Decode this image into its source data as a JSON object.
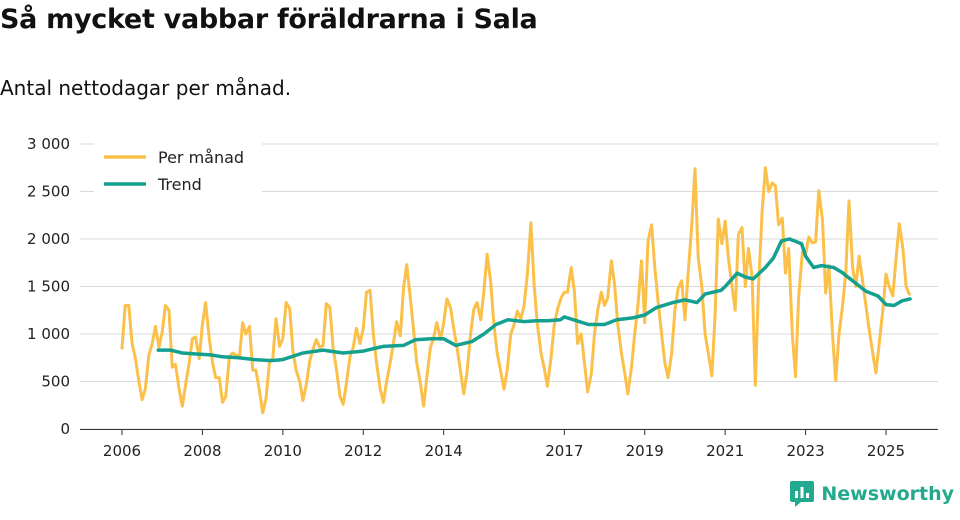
{
  "header": {
    "title": "Så mycket vabbar föräldrarna i Sala",
    "subtitle": "Antal nettodagar per månad."
  },
  "brand": {
    "name": "Newsworthy",
    "color": "#23a98e"
  },
  "chart_data": {
    "type": "line",
    "title": "Så mycket vabbar föräldrarna i Sala",
    "subtitle": "Antal nettodagar per månad.",
    "xlabel": "",
    "ylabel": "",
    "xlim": [
      2006,
      2026.3
    ],
    "ylim": [
      0,
      3000
    ],
    "yticks": [
      0,
      500,
      1000,
      1500,
      2000,
      2500,
      3000
    ],
    "ytick_labels": [
      "0",
      "500",
      "1 000",
      "1 500",
      "2 000",
      "2 500",
      "3 000"
    ],
    "xticks": [
      2006,
      2008,
      2010,
      2012,
      2014,
      2017,
      2019,
      2021,
      2023,
      2025
    ],
    "xtick_labels": [
      "2006",
      "2008",
      "2010",
      "2012",
      "2014",
      "2017",
      "2019",
      "2021",
      "2023",
      "2025"
    ],
    "grid": "horizontal",
    "legend_position": "top-left",
    "series": [
      {
        "name": "Per månad",
        "color": "#fbc04a",
        "points": [
          [
            2006.0,
            850
          ],
          [
            2006.08,
            1300
          ],
          [
            2006.17,
            1300
          ],
          [
            2006.25,
            900
          ],
          [
            2006.33,
            750
          ],
          [
            2006.42,
            500
          ],
          [
            2006.5,
            310
          ],
          [
            2006.58,
            420
          ],
          [
            2006.67,
            780
          ],
          [
            2006.75,
            900
          ],
          [
            2006.83,
            1080
          ],
          [
            2006.92,
            860
          ],
          [
            2007.0,
            1020
          ],
          [
            2007.08,
            1300
          ],
          [
            2007.17,
            1250
          ],
          [
            2007.25,
            650
          ],
          [
            2007.33,
            680
          ],
          [
            2007.42,
            420
          ],
          [
            2007.5,
            240
          ],
          [
            2007.58,
            460
          ],
          [
            2007.67,
            700
          ],
          [
            2007.75,
            950
          ],
          [
            2007.83,
            970
          ],
          [
            2007.92,
            740
          ],
          [
            2008.0,
            1100
          ],
          [
            2008.08,
            1330
          ],
          [
            2008.17,
            950
          ],
          [
            2008.25,
            700
          ],
          [
            2008.33,
            540
          ],
          [
            2008.42,
            540
          ],
          [
            2008.5,
            280
          ],
          [
            2008.58,
            340
          ],
          [
            2008.67,
            760
          ],
          [
            2008.75,
            800
          ],
          [
            2008.83,
            780
          ],
          [
            2008.92,
            750
          ],
          [
            2009.0,
            1120
          ],
          [
            2009.08,
            1000
          ],
          [
            2009.17,
            1080
          ],
          [
            2009.25,
            620
          ],
          [
            2009.33,
            620
          ],
          [
            2009.42,
            400
          ],
          [
            2009.5,
            170
          ],
          [
            2009.58,
            320
          ],
          [
            2009.67,
            720
          ],
          [
            2009.75,
            740
          ],
          [
            2009.83,
            1160
          ],
          [
            2009.92,
            870
          ],
          [
            2010.0,
            950
          ],
          [
            2010.08,
            1330
          ],
          [
            2010.17,
            1270
          ],
          [
            2010.25,
            820
          ],
          [
            2010.33,
            620
          ],
          [
            2010.42,
            500
          ],
          [
            2010.5,
            300
          ],
          [
            2010.58,
            460
          ],
          [
            2010.67,
            720
          ],
          [
            2010.75,
            840
          ],
          [
            2010.83,
            940
          ],
          [
            2010.92,
            860
          ],
          [
            2011.0,
            880
          ],
          [
            2011.08,
            1320
          ],
          [
            2011.17,
            1280
          ],
          [
            2011.25,
            850
          ],
          [
            2011.33,
            640
          ],
          [
            2011.42,
            350
          ],
          [
            2011.5,
            260
          ],
          [
            2011.58,
            480
          ],
          [
            2011.67,
            760
          ],
          [
            2011.75,
            860
          ],
          [
            2011.83,
            1060
          ],
          [
            2011.92,
            900
          ],
          [
            2012.0,
            1060
          ],
          [
            2012.08,
            1440
          ],
          [
            2012.17,
            1460
          ],
          [
            2012.25,
            1000
          ],
          [
            2012.33,
            700
          ],
          [
            2012.42,
            420
          ],
          [
            2012.5,
            280
          ],
          [
            2012.58,
            500
          ],
          [
            2012.67,
            700
          ],
          [
            2012.75,
            900
          ],
          [
            2012.83,
            1130
          ],
          [
            2012.92,
            980
          ],
          [
            2013.0,
            1480
          ],
          [
            2013.08,
            1730
          ],
          [
            2013.17,
            1380
          ],
          [
            2013.25,
            1050
          ],
          [
            2013.33,
            700
          ],
          [
            2013.42,
            480
          ],
          [
            2013.5,
            240
          ],
          [
            2013.58,
            540
          ],
          [
            2013.67,
            860
          ],
          [
            2013.75,
            960
          ],
          [
            2013.83,
            1120
          ],
          [
            2013.92,
            940
          ],
          [
            2014.0,
            1120
          ],
          [
            2014.08,
            1370
          ],
          [
            2014.17,
            1280
          ],
          [
            2014.25,
            1060
          ],
          [
            2014.33,
            860
          ],
          [
            2014.42,
            600
          ],
          [
            2014.5,
            370
          ],
          [
            2014.58,
            600
          ],
          [
            2014.67,
            1000
          ],
          [
            2014.75,
            1260
          ],
          [
            2014.83,
            1330
          ],
          [
            2014.92,
            1150
          ],
          [
            2015.0,
            1450
          ],
          [
            2015.08,
            1840
          ],
          [
            2015.17,
            1550
          ],
          [
            2015.25,
            1100
          ],
          [
            2015.33,
            800
          ],
          [
            2015.42,
            600
          ],
          [
            2015.5,
            420
          ],
          [
            2015.58,
            620
          ],
          [
            2015.67,
            1000
          ],
          [
            2015.75,
            1100
          ],
          [
            2015.83,
            1240
          ],
          [
            2015.92,
            1160
          ],
          [
            2016.0,
            1300
          ],
          [
            2016.08,
            1620
          ],
          [
            2016.17,
            2170
          ],
          [
            2016.25,
            1500
          ],
          [
            2016.33,
            1100
          ],
          [
            2016.42,
            800
          ],
          [
            2016.5,
            640
          ],
          [
            2016.58,
            450
          ],
          [
            2016.67,
            750
          ],
          [
            2016.75,
            1100
          ],
          [
            2016.83,
            1260
          ],
          [
            2016.92,
            1380
          ],
          [
            2017.0,
            1440
          ],
          [
            2017.08,
            1440
          ],
          [
            2017.17,
            1700
          ],
          [
            2017.25,
            1450
          ],
          [
            2017.33,
            900
          ],
          [
            2017.42,
            1000
          ],
          [
            2017.5,
            700
          ],
          [
            2017.58,
            390
          ],
          [
            2017.67,
            580
          ],
          [
            2017.75,
            1000
          ],
          [
            2017.83,
            1250
          ],
          [
            2017.92,
            1440
          ],
          [
            2018.0,
            1300
          ],
          [
            2018.08,
            1380
          ],
          [
            2018.17,
            1770
          ],
          [
            2018.25,
            1520
          ],
          [
            2018.33,
            1100
          ],
          [
            2018.42,
            800
          ],
          [
            2018.5,
            600
          ],
          [
            2018.58,
            370
          ],
          [
            2018.67,
            650
          ],
          [
            2018.75,
            1000
          ],
          [
            2018.83,
            1300
          ],
          [
            2018.92,
            1770
          ],
          [
            2019.0,
            1120
          ],
          [
            2019.08,
            1980
          ],
          [
            2019.17,
            2150
          ],
          [
            2019.25,
            1700
          ],
          [
            2019.33,
            1350
          ],
          [
            2019.42,
            1000
          ],
          [
            2019.5,
            700
          ],
          [
            2019.58,
            540
          ],
          [
            2019.67,
            800
          ],
          [
            2019.75,
            1250
          ],
          [
            2019.83,
            1480
          ],
          [
            2019.92,
            1560
          ],
          [
            2020.0,
            1150
          ],
          [
            2020.08,
            1650
          ],
          [
            2020.17,
            2150
          ],
          [
            2020.25,
            2740
          ],
          [
            2020.33,
            1800
          ],
          [
            2020.42,
            1500
          ],
          [
            2020.5,
            1000
          ],
          [
            2020.58,
            800
          ],
          [
            2020.67,
            560
          ],
          [
            2020.75,
            1200
          ],
          [
            2020.83,
            2210
          ],
          [
            2020.92,
            1950
          ],
          [
            2021.0,
            2190
          ],
          [
            2021.08,
            1800
          ],
          [
            2021.17,
            1500
          ],
          [
            2021.25,
            1250
          ],
          [
            2021.33,
            2050
          ],
          [
            2021.42,
            2120
          ],
          [
            2021.5,
            1500
          ],
          [
            2021.58,
            1900
          ],
          [
            2021.67,
            1600
          ],
          [
            2021.75,
            460
          ],
          [
            2021.83,
            1500
          ],
          [
            2021.92,
            2300
          ],
          [
            2022.0,
            2750
          ],
          [
            2022.08,
            2500
          ],
          [
            2022.17,
            2590
          ],
          [
            2022.25,
            2560
          ],
          [
            2022.33,
            2150
          ],
          [
            2022.42,
            2220
          ],
          [
            2022.5,
            1640
          ],
          [
            2022.58,
            1900
          ],
          [
            2022.67,
            1000
          ],
          [
            2022.75,
            550
          ],
          [
            2022.83,
            1400
          ],
          [
            2022.92,
            1860
          ],
          [
            2023.0,
            1840
          ],
          [
            2023.08,
            2020
          ],
          [
            2023.17,
            1960
          ],
          [
            2023.25,
            1970
          ],
          [
            2023.33,
            2510
          ],
          [
            2023.42,
            2200
          ],
          [
            2023.5,
            1430
          ],
          [
            2023.58,
            1720
          ],
          [
            2023.67,
            1000
          ],
          [
            2023.75,
            510
          ],
          [
            2023.83,
            1000
          ],
          [
            2023.92,
            1300
          ],
          [
            2024.0,
            1650
          ],
          [
            2024.08,
            2400
          ],
          [
            2024.17,
            1700
          ],
          [
            2024.25,
            1500
          ],
          [
            2024.33,
            1820
          ],
          [
            2024.42,
            1550
          ],
          [
            2024.5,
            1300
          ],
          [
            2024.58,
            1050
          ],
          [
            2024.67,
            800
          ],
          [
            2024.75,
            590
          ],
          [
            2024.83,
            900
          ],
          [
            2024.92,
            1250
          ],
          [
            2025.0,
            1630
          ],
          [
            2025.08,
            1500
          ],
          [
            2025.17,
            1400
          ],
          [
            2025.25,
            1800
          ],
          [
            2025.33,
            2160
          ],
          [
            2025.42,
            1900
          ],
          [
            2025.5,
            1500
          ],
          [
            2025.58,
            1420
          ]
        ]
      },
      {
        "name": "Trend",
        "color": "#14a090",
        "points": [
          [
            2006.9,
            830
          ],
          [
            2007.2,
            830
          ],
          [
            2007.5,
            800
          ],
          [
            2007.8,
            790
          ],
          [
            2008.2,
            780
          ],
          [
            2008.5,
            760
          ],
          [
            2008.9,
            750
          ],
          [
            2009.3,
            730
          ],
          [
            2009.7,
            720
          ],
          [
            2010.0,
            730
          ],
          [
            2010.5,
            800
          ],
          [
            2011.0,
            830
          ],
          [
            2011.5,
            800
          ],
          [
            2012.0,
            820
          ],
          [
            2012.5,
            870
          ],
          [
            2013.0,
            880
          ],
          [
            2013.3,
            940
          ],
          [
            2013.7,
            950
          ],
          [
            2014.0,
            950
          ],
          [
            2014.3,
            880
          ],
          [
            2014.7,
            920
          ],
          [
            2015.0,
            1000
          ],
          [
            2015.3,
            1100
          ],
          [
            2015.6,
            1150
          ],
          [
            2016.0,
            1130
          ],
          [
            2016.3,
            1140
          ],
          [
            2016.6,
            1140
          ],
          [
            2016.9,
            1150
          ],
          [
            2017.0,
            1180
          ],
          [
            2017.3,
            1140
          ],
          [
            2017.6,
            1100
          ],
          [
            2018.0,
            1100
          ],
          [
            2018.3,
            1150
          ],
          [
            2018.7,
            1170
          ],
          [
            2019.0,
            1200
          ],
          [
            2019.3,
            1280
          ],
          [
            2019.7,
            1330
          ],
          [
            2020.0,
            1360
          ],
          [
            2020.3,
            1330
          ],
          [
            2020.5,
            1420
          ],
          [
            2020.9,
            1460
          ],
          [
            2021.0,
            1500
          ],
          [
            2021.3,
            1640
          ],
          [
            2021.5,
            1600
          ],
          [
            2021.7,
            1580
          ],
          [
            2022.0,
            1700
          ],
          [
            2022.2,
            1800
          ],
          [
            2022.4,
            1980
          ],
          [
            2022.6,
            2000
          ],
          [
            2022.9,
            1950
          ],
          [
            2023.0,
            1820
          ],
          [
            2023.2,
            1700
          ],
          [
            2023.4,
            1720
          ],
          [
            2023.7,
            1700
          ],
          [
            2023.9,
            1650
          ],
          [
            2024.2,
            1550
          ],
          [
            2024.5,
            1450
          ],
          [
            2024.8,
            1400
          ],
          [
            2025.0,
            1310
          ],
          [
            2025.2,
            1300
          ],
          [
            2025.4,
            1350
          ],
          [
            2025.6,
            1370
          ]
        ]
      }
    ]
  }
}
